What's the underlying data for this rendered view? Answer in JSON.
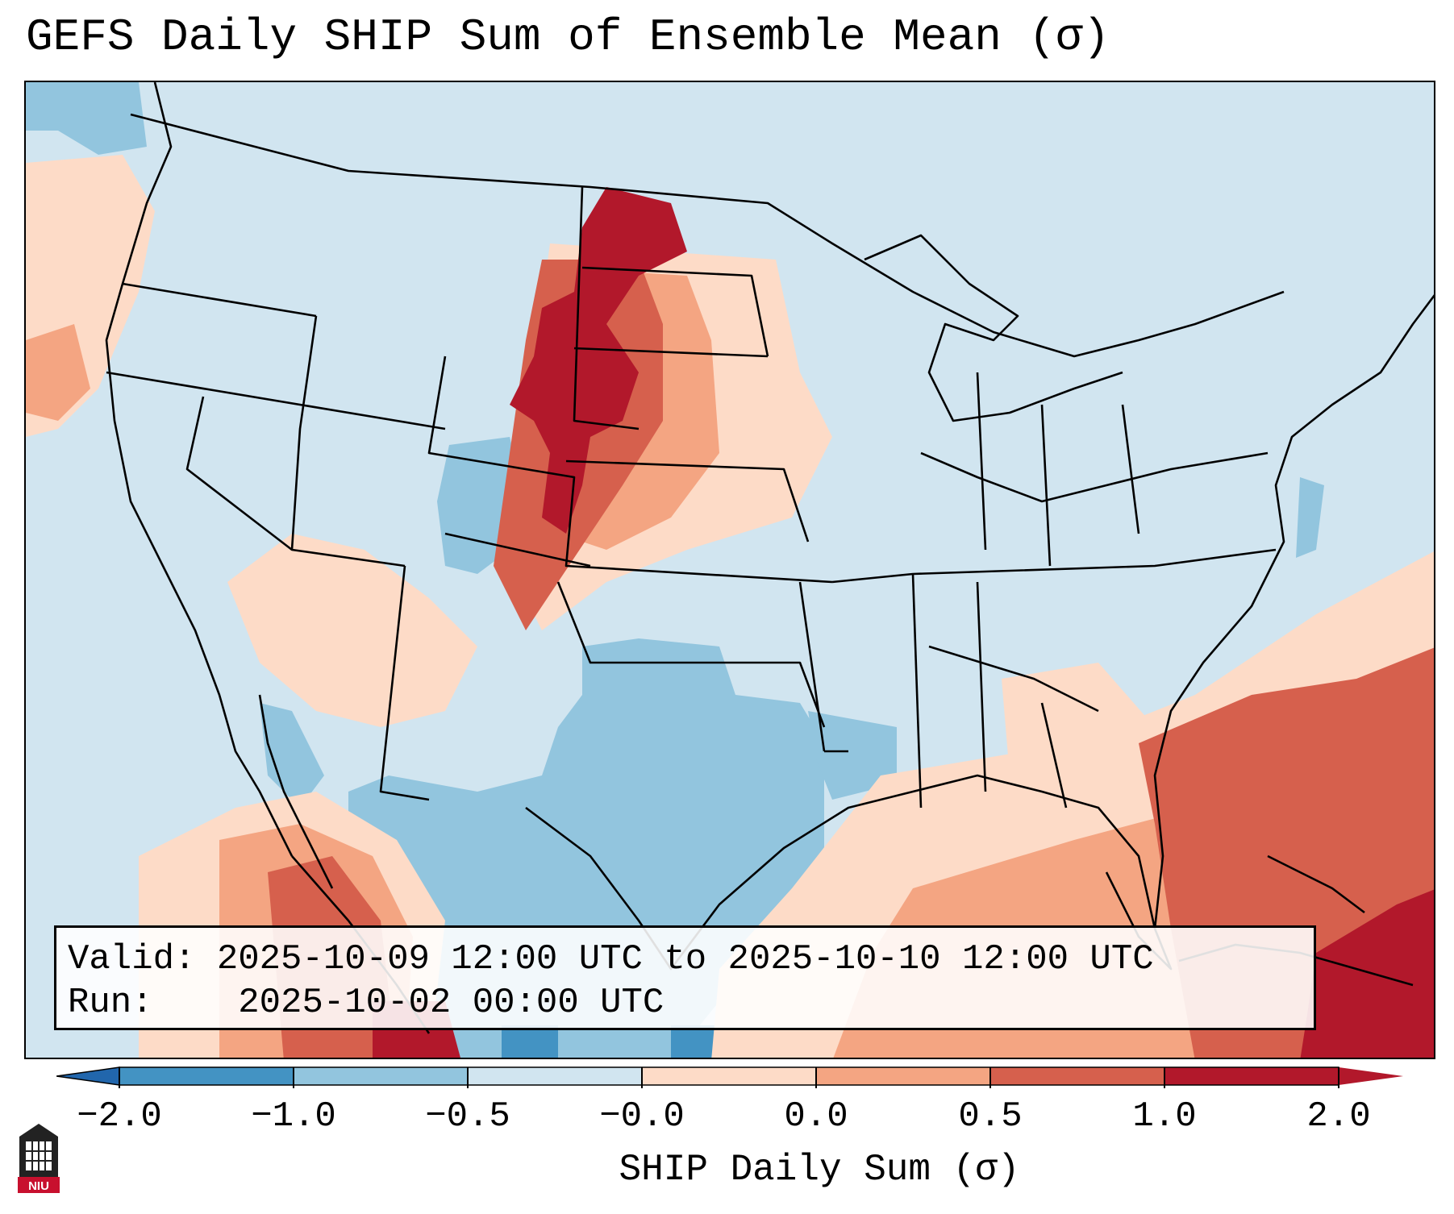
{
  "title": "GEFS Daily SHIP Sum of Ensemble Mean (σ)",
  "info": {
    "valid_label": "Valid:",
    "valid_text": "2025-10-09 12:00 UTC to 2025-10-10 12:00 UTC",
    "run_label": "Run:",
    "run_text": "2025-10-02 00:00 UTC"
  },
  "colorbar": {
    "label": "SHIP Daily Sum (σ)",
    "ticks": [
      "−2.0",
      "−1.0",
      "−0.5",
      "−0.0",
      "0.0",
      "0.5",
      "1.0",
      "2.0"
    ],
    "colors": [
      "#2166ac",
      "#4393c3",
      "#92c5de",
      "#d1e5f0",
      "#fddbc7",
      "#f4a582",
      "#d6604d",
      "#b2182b"
    ]
  },
  "logo": {
    "text": "NIU"
  },
  "colors": {
    "background": "#d1e5f0",
    "coast": "#000000"
  }
}
